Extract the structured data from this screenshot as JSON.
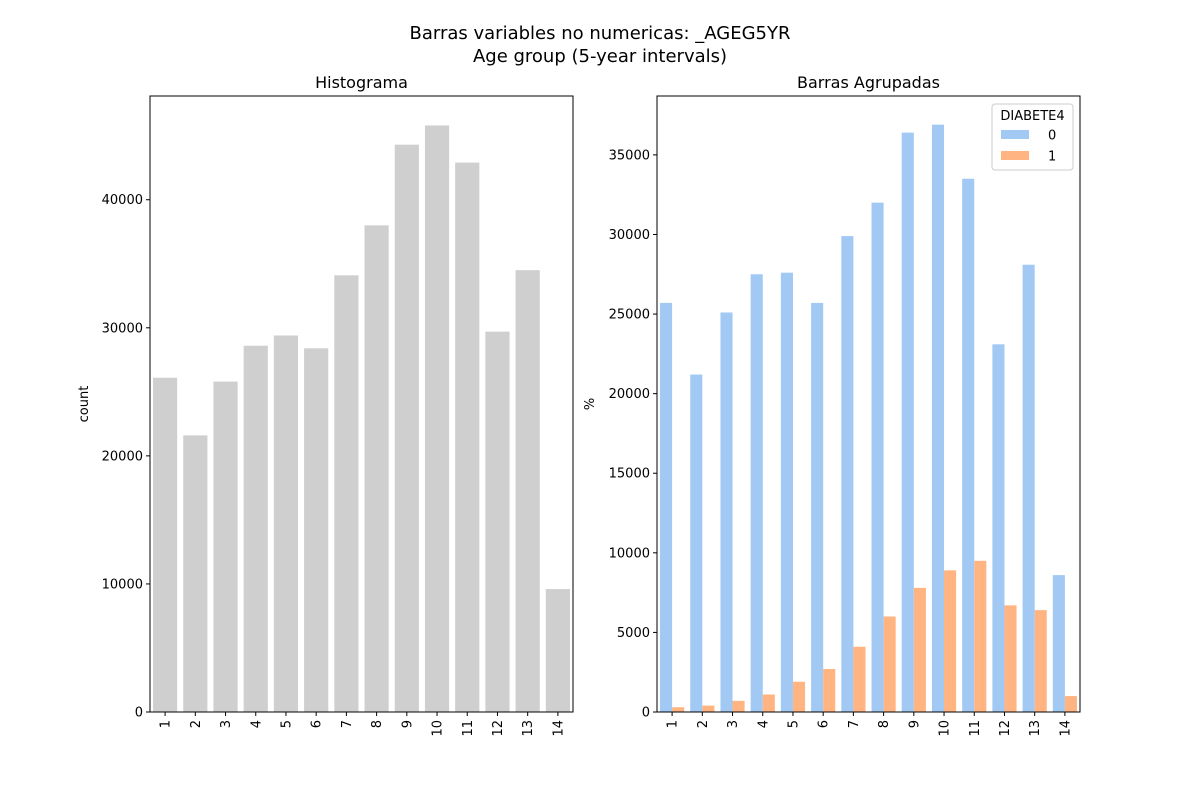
{
  "figure": {
    "suptitle_line1": "Barras variables no numericas: _AGEG5YR",
    "suptitle_line2": "Age group (5-year intervals)"
  },
  "chart_data": [
    {
      "type": "bar",
      "title": "Histograma",
      "xlabel": "",
      "ylabel": "count",
      "categories": [
        "1",
        "2",
        "3",
        "4",
        "5",
        "6",
        "7",
        "8",
        "9",
        "10",
        "11",
        "12",
        "13",
        "14"
      ],
      "values": [
        26100,
        21600,
        25800,
        28600,
        29400,
        28400,
        34100,
        38000,
        44300,
        45800,
        42900,
        29700,
        34500,
        9600
      ],
      "ylim": [
        0,
        48100
      ],
      "yticks": [
        0,
        10000,
        20000,
        30000,
        40000
      ],
      "ytick_labels": [
        "0",
        "10000",
        "20000",
        "30000",
        "40000"
      ],
      "bar_color": "#cfcfcf",
      "grid": false,
      "legend": null
    },
    {
      "type": "bar",
      "title": "Barras Agrupadas",
      "xlabel": "",
      "ylabel": "%",
      "categories": [
        "1",
        "2",
        "3",
        "4",
        "5",
        "6",
        "7",
        "8",
        "9",
        "10",
        "11",
        "12",
        "13",
        "14"
      ],
      "series": [
        {
          "name": "0",
          "color": "#a1c9f4",
          "values": [
            25700,
            21200,
            25100,
            27500,
            27600,
            25700,
            29900,
            32000,
            36400,
            36900,
            33500,
            23100,
            28100,
            8600
          ]
        },
        {
          "name": "1",
          "color": "#ffb482",
          "values": [
            300,
            400,
            700,
            1100,
            1900,
            2700,
            4100,
            6000,
            7800,
            8900,
            9500,
            6700,
            6400,
            1000
          ]
        }
      ],
      "ylim": [
        0,
        38700
      ],
      "yticks": [
        0,
        5000,
        10000,
        15000,
        20000,
        25000,
        30000,
        35000
      ],
      "ytick_labels": [
        "0",
        "5000",
        "10000",
        "15000",
        "20000",
        "25000",
        "30000",
        "35000"
      ],
      "grid": false,
      "legend": {
        "title": "DIABETE4",
        "placement": "top-right"
      }
    }
  ]
}
